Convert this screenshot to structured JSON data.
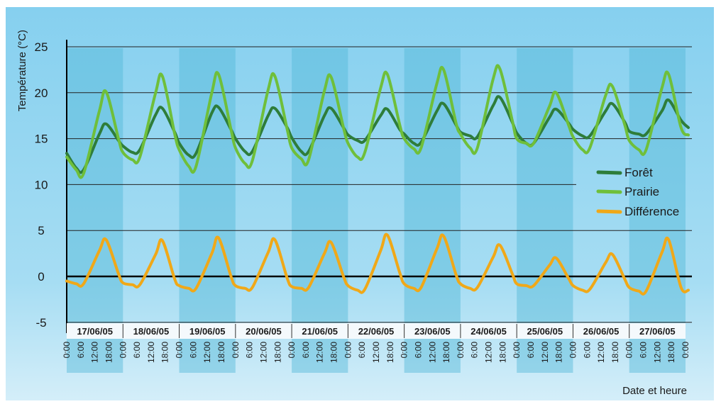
{
  "chart_data": {
    "type": "line",
    "ylabel": "Température (°C)",
    "xlabel": "Date et heure",
    "ylim": [
      -5,
      25
    ],
    "yticks": [
      25,
      20,
      15,
      10,
      5,
      0,
      -5
    ],
    "days": [
      "17/06/05",
      "18/06/05",
      "19/06/05",
      "20/06/05",
      "21/06/05",
      "22/06/05",
      "23/06/05",
      "24/06/05",
      "25/06/05",
      "26/06/05",
      "27/06/05"
    ],
    "hour_labels": [
      "0:00",
      "6:00",
      "12:00",
      "18:00"
    ],
    "final_hour_label": "0:00",
    "legend_position": "right",
    "colors": {
      "foret": "#2e7d3a",
      "prairie": "#6fbf3a",
      "difference": "#f0a818",
      "background": "#8ed3ee"
    },
    "series": [
      {
        "name": "Forêt",
        "values": [
          [
            13.4,
            11.8,
            11.6,
            15.5,
            16.6,
            14.8
          ],
          [
            14.2,
            13.5,
            13.8,
            17.6,
            18.3,
            15.7
          ],
          [
            14.5,
            13.2,
            13.4,
            17.8,
            18.4,
            16.0
          ],
          [
            15.0,
            13.6,
            13.6,
            17.5,
            18.3,
            16.2
          ],
          [
            15.1,
            13.6,
            13.6,
            17.5,
            18.3,
            16.2
          ],
          [
            15.4,
            14.8,
            14.8,
            17.5,
            18.2,
            16.0
          ],
          [
            15.5,
            14.5,
            14.6,
            18.0,
            18.8,
            16.5
          ],
          [
            15.7,
            15.3,
            15.2,
            18.6,
            19.5,
            16.8
          ],
          [
            15.6,
            14.5,
            14.5,
            17.3,
            18.2,
            16.7
          ],
          [
            16.0,
            15.3,
            15.3,
            18.0,
            18.8,
            16.8
          ],
          [
            15.8,
            15.5,
            15.5,
            18.0,
            19.2,
            17.0
          ]
        ]
      },
      {
        "name": "Prairie",
        "values": [
          [
            13.0,
            11.6,
            11.2,
            18.0,
            20.1,
            15.0
          ],
          [
            13.5,
            12.7,
            13.0,
            20.0,
            21.8,
            15.5
          ],
          [
            13.8,
            12.0,
            12.0,
            20.0,
            22.0,
            16.0
          ],
          [
            14.0,
            12.3,
            12.6,
            20.3,
            21.8,
            16.0
          ],
          [
            14.0,
            12.8,
            12.7,
            20.2,
            21.7,
            16.2
          ],
          [
            14.5,
            13.0,
            13.5,
            20.5,
            22.0,
            16.5
          ],
          [
            15.0,
            13.9,
            14.0,
            21.0,
            22.5,
            16.7
          ],
          [
            15.5,
            14.0,
            14.0,
            21.5,
            22.6,
            17.0
          ],
          [
            15.0,
            14.5,
            14.5,
            18.5,
            20.0,
            16.5
          ],
          [
            15.2,
            13.8,
            14.0,
            19.7,
            20.7,
            16.5
          ],
          [
            14.8,
            13.8,
            13.8,
            20.5,
            22.0,
            16.2
          ]
        ]
      },
      {
        "name": "Différence",
        "values": [
          [
            -0.5,
            -0.8,
            -0.8,
            2.8,
            4.0,
            0.3
          ],
          [
            -0.7,
            -0.9,
            -0.9,
            2.4,
            3.9,
            -0.3
          ],
          [
            -1.0,
            -1.3,
            -1.3,
            2.5,
            4.2,
            0.0
          ],
          [
            -1.0,
            -1.3,
            -1.2,
            2.6,
            4.0,
            -0.2
          ],
          [
            -1.1,
            -1.3,
            -1.2,
            2.5,
            3.7,
            0.0
          ],
          [
            -1.0,
            -1.5,
            -1.4,
            2.8,
            4.5,
            0.4
          ],
          [
            -0.8,
            -1.3,
            -1.2,
            3.0,
            4.4,
            0.2
          ],
          [
            -0.8,
            -1.3,
            -1.2,
            2.1,
            3.4,
            0.3
          ],
          [
            -0.8,
            -1.0,
            -1.0,
            1.2,
            2.0,
            -0.2
          ],
          [
            -1.0,
            -1.5,
            -1.4,
            1.5,
            2.4,
            -0.3
          ],
          [
            -1.2,
            -1.6,
            -1.6,
            2.6,
            4.0,
            -1.2
          ]
        ]
      }
    ]
  }
}
